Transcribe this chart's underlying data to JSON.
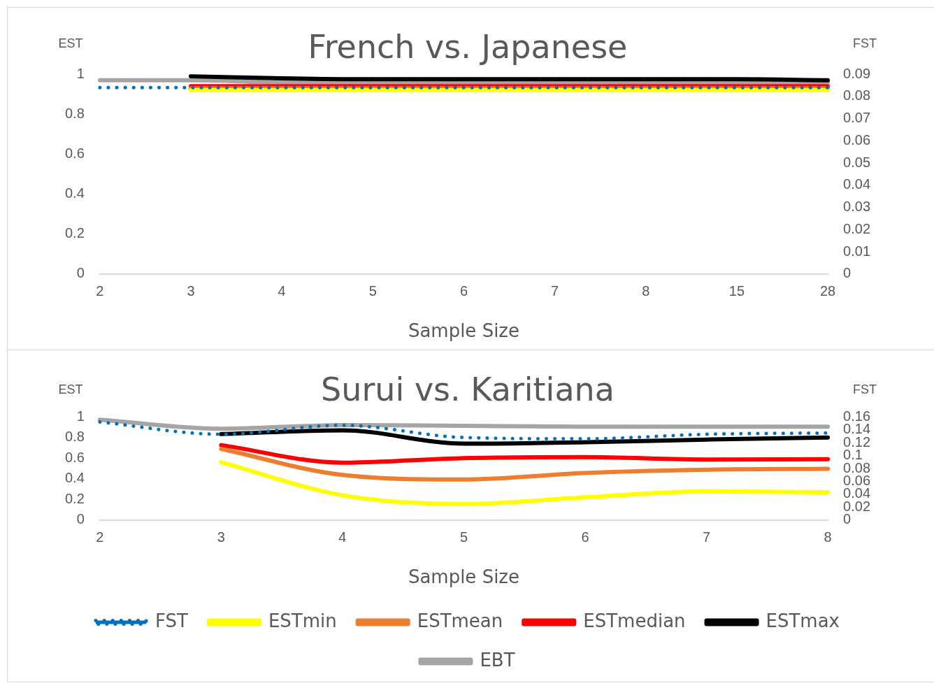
{
  "chart_data": [
    {
      "type": "line",
      "title": "French vs. Japanese",
      "xlabel": "Sample Size",
      "ylabel": "EST",
      "y2label": "FST",
      "categories": [
        "2",
        "3",
        "4",
        "5",
        "6",
        "7",
        "8",
        "15",
        "28"
      ],
      "series": [
        {
          "color": "#ffff00",
          "values": [
            null,
            0.92,
            0.92,
            0.92,
            0.92,
            0.92,
            0.92,
            0.92,
            0.92
          ]
        },
        {
          "color": "#ed7d31",
          "values": [
            null,
            0.93,
            0.93,
            0.93,
            0.93,
            0.93,
            0.93,
            0.93,
            0.93
          ]
        },
        {
          "color": "#ff0000",
          "values": [
            null,
            0.94,
            0.94,
            0.94,
            0.94,
            0.94,
            0.94,
            0.94,
            0.94
          ]
        },
        {
          "color": "#000000",
          "values": [
            null,
            0.99,
            0.98,
            0.975,
            0.975,
            0.975,
            0.975,
            0.975,
            0.97
          ]
        },
        {
          "color": "#a5a5a5",
          "values": [
            0.97,
            0.97,
            0.96,
            0.96,
            0.96,
            0.96,
            0.96,
            0.96,
            0.96
          ]
        },
        {
          "color": "#0070c0",
          "axis": "y2",
          "line_style": "dotted",
          "values": [
            0.084,
            0.084,
            0.084,
            0.084,
            0.084,
            0.084,
            0.084,
            0.084,
            0.084
          ]
        }
      ],
      "ylim": [
        0,
        1
      ],
      "yticks": [
        0,
        0.2,
        0.4,
        0.6,
        0.8,
        1
      ],
      "y2lim": [
        0,
        0.09
      ],
      "y2ticks": [
        0,
        0.01,
        0.02,
        0.03,
        0.04,
        0.05,
        0.06,
        0.07,
        0.08,
        0.09
      ],
      "grid": false,
      "legend": false,
      "marker": "none",
      "line_style": "solid"
    },
    {
      "type": "line",
      "title": "Surui vs. Karitiana",
      "xlabel": "Sample Size",
      "ylabel": "EST",
      "y2label": "FST",
      "categories": [
        "2",
        "3",
        "4",
        "5",
        "6",
        "7",
        "8"
      ],
      "series": [
        {
          "name": "ESTmin",
          "color": "#ffff00",
          "values": [
            null,
            0.56,
            0.24,
            0.155,
            0.22,
            0.278,
            0.27
          ]
        },
        {
          "name": "ESTmean",
          "color": "#ed7d31",
          "values": [
            null,
            0.69,
            0.437,
            0.393,
            0.456,
            0.488,
            0.496
          ]
        },
        {
          "name": "ESTmedian",
          "color": "#ff0000",
          "values": [
            null,
            0.726,
            0.556,
            0.6,
            0.61,
            0.587,
            0.59
          ]
        },
        {
          "name": "ESTmax",
          "color": "#000000",
          "values": [
            null,
            0.833,
            0.87,
            0.74,
            0.754,
            0.78,
            0.8
          ]
        },
        {
          "name": "EBT",
          "color": "#a5a5a5",
          "values": [
            0.972,
            0.885,
            0.92,
            0.913,
            0.905,
            0.905,
            0.905
          ]
        },
        {
          "name": "FST",
          "color": "#0070c0",
          "axis": "y2",
          "line_style": "dotted",
          "values": [
            0.152,
            0.133,
            0.147,
            0.128,
            0.126,
            0.133,
            0.135
          ]
        }
      ],
      "ylim": [
        0,
        1
      ],
      "yticks": [
        0,
        0.2,
        0.4,
        0.6,
        0.8,
        1
      ],
      "y2lim": [
        0,
        0.16
      ],
      "y2ticks": [
        0,
        0.02,
        0.04,
        0.06,
        0.08,
        0.1,
        0.12,
        0.14,
        0.16
      ],
      "grid": false,
      "legend": "bottom",
      "marker": "none",
      "line_style": "solid"
    }
  ]
}
